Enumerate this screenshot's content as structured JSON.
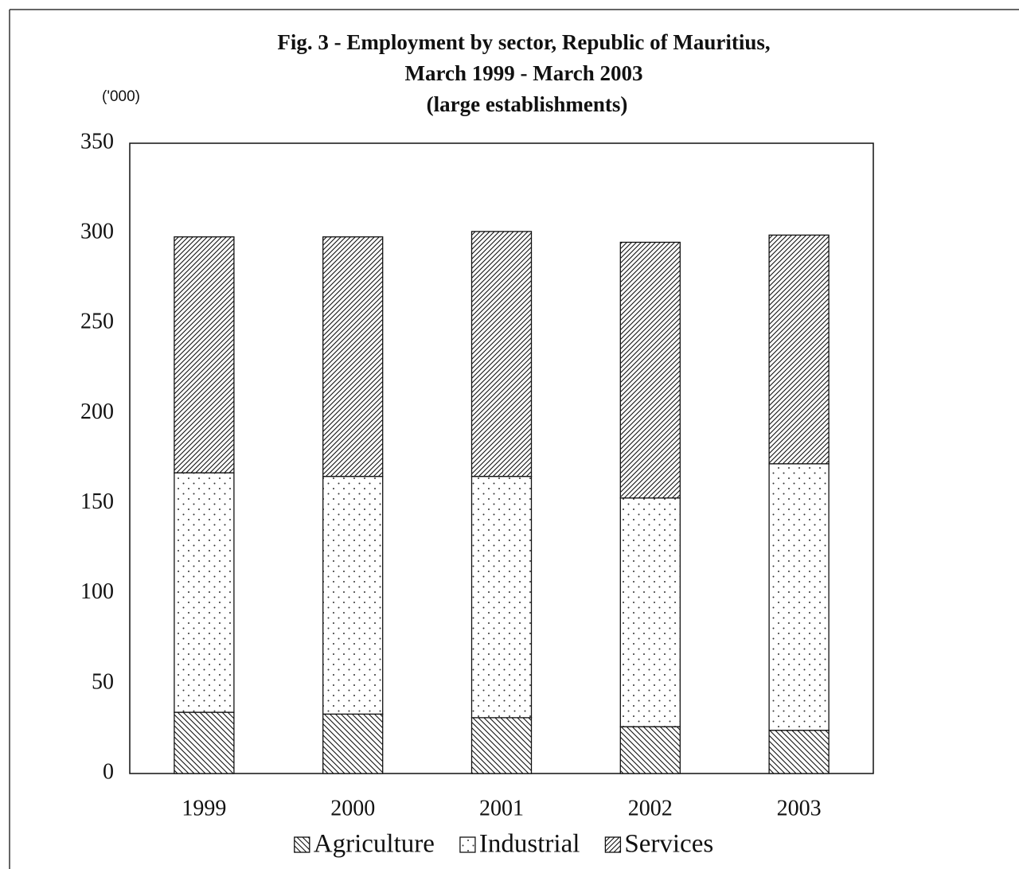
{
  "chart_data": {
    "type": "stacked_bar",
    "title": [
      "Fig. 3 - Employment by sector, Republic of Mauritius,",
      "March 1999 - March 2003"
    ],
    "subtitle": "(large establishments)",
    "y_label": "('000)",
    "categories": [
      "1999",
      "2000",
      "2001",
      "2002",
      "2003"
    ],
    "series": [
      {
        "name": "Agriculture",
        "color": "#111111",
        "pattern": "backslash",
        "values": [
          34,
          33,
          31,
          26,
          24
        ]
      },
      {
        "name": "Industrial",
        "color": "#111111",
        "pattern": "dots",
        "values": [
          133,
          132,
          134,
          127,
          148
        ]
      },
      {
        "name": "Services",
        "color": "#111111",
        "pattern": "slash",
        "values": [
          131,
          133,
          136,
          142,
          127
        ]
      }
    ],
    "ylim": [
      0,
      350
    ],
    "yticks": [
      0,
      50,
      100,
      150,
      200,
      250,
      300,
      350
    ],
    "grid": false,
    "legend": "bottom"
  }
}
